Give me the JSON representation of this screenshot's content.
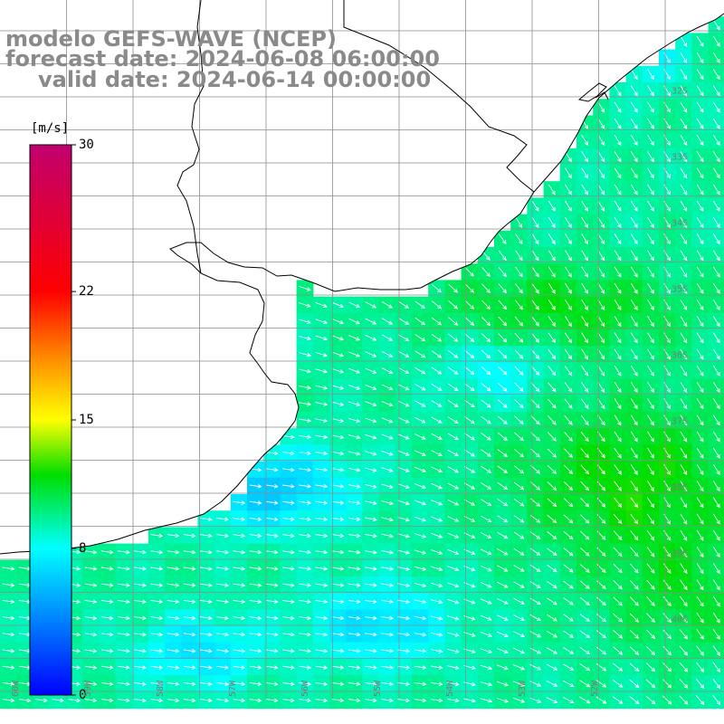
{
  "title": {
    "line1": "modelo GEFS-WAVE (NCEP)",
    "line2": "forecast date: 2024-06-08 06:00:00",
    "line3": "valid date: 2024-06-14 00:00:00"
  },
  "colorbar": {
    "unit_label": "[m/s]",
    "min": 0,
    "max": 30,
    "ticks": [
      {
        "label": "30",
        "value": 30
      },
      {
        "label": "22",
        "value": 22
      },
      {
        "label": "15",
        "value": 15
      },
      {
        "label": "8",
        "value": 8
      },
      {
        "label": "0",
        "value": 0
      }
    ],
    "gradient_stops": [
      {
        "value": 0,
        "color": "#0000ff"
      },
      {
        "value": 8,
        "color": "#00ffff"
      },
      {
        "value": 12,
        "color": "#00dd00"
      },
      {
        "value": 15,
        "color": "#ffff00"
      },
      {
        "value": 18,
        "color": "#ff9900"
      },
      {
        "value": 22,
        "color": "#ff0000"
      },
      {
        "value": 30,
        "color": "#c0006e"
      }
    ]
  },
  "map": {
    "land_color": "#ffffff",
    "coastline_color": "#000000",
    "grid_color": "#8c8c8c",
    "arrow_color": "#ffffff",
    "latitude_labels": [
      "32S",
      "33S",
      "34S",
      "35S",
      "36S",
      "37S",
      "38S",
      "39S",
      "40S"
    ],
    "longitude_labels": [
      "60W",
      "59W",
      "58W",
      "57W",
      "56W",
      "55W",
      "54W",
      "53W",
      "52W"
    ]
  }
}
